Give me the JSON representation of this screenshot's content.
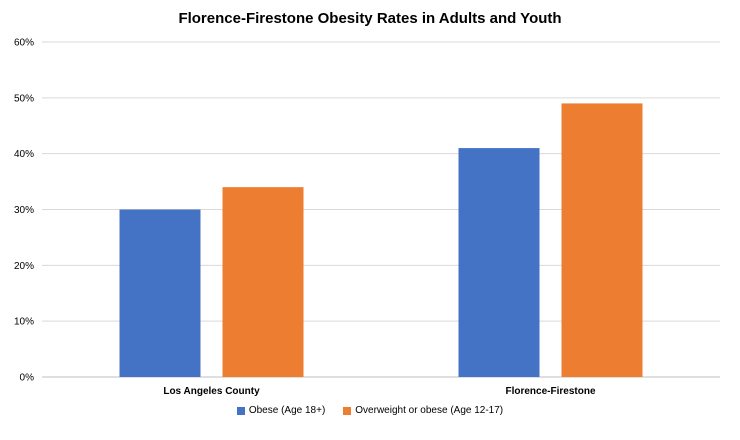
{
  "colors": {
    "obese": "#4472C4",
    "overweight": "#ED7D31",
    "grid": "#D9D9D9",
    "text": "#000000"
  },
  "chart_data": {
    "type": "bar",
    "title": "Florence-Firestone Obesity Rates in Adults and Youth",
    "xlabel": "",
    "ylabel": "",
    "categories": [
      "Los Angeles County",
      "Florence-Firestone"
    ],
    "series": [
      {
        "name": "Obese (Age 18+)",
        "values": [
          30,
          41
        ],
        "color": "#4472C4"
      },
      {
        "name": "Overweight or obese  (Age 12-17)",
        "values": [
          34,
          49
        ],
        "color": "#ED7D31"
      }
    ],
    "ylim": [
      0,
      60
    ],
    "yticks": [
      0,
      10,
      20,
      30,
      40,
      50,
      60
    ],
    "ytick_labels": [
      "0%",
      "10%",
      "20%",
      "30%",
      "40%",
      "50%",
      "60%"
    ],
    "grid": true,
    "legend_position": "bottom"
  }
}
